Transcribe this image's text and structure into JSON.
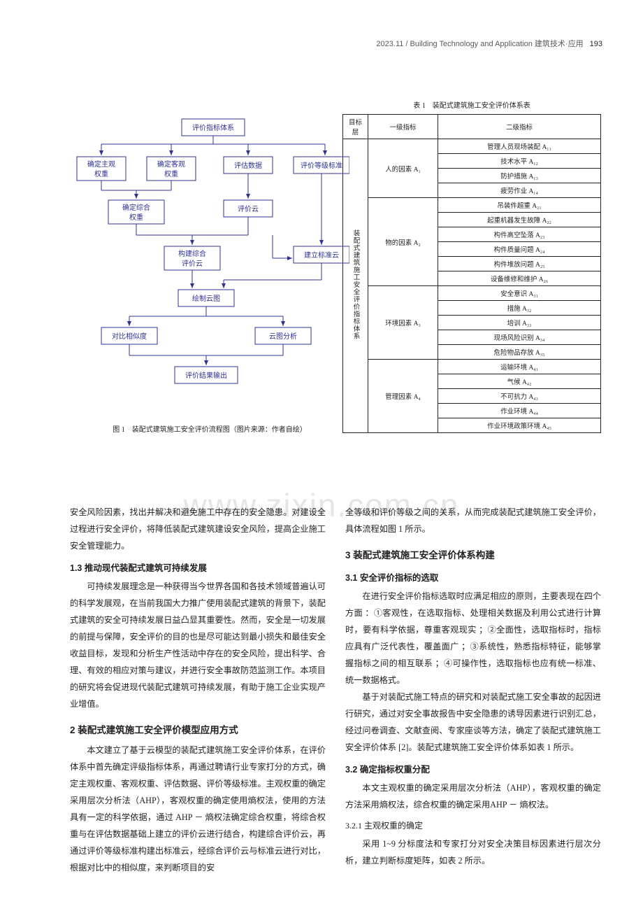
{
  "header": {
    "journal": "2023.11 / Building Technology and Application 建筑技术·应用",
    "page": "193"
  },
  "figure": {
    "caption": "图 1　装配式建筑施工安全评价流程图（图片来源：作者自绘）",
    "nodes": {
      "n1": "评价指标体系",
      "n2": "确定主观权重",
      "n3": "确定客观权重",
      "n4": "评估数据",
      "n5": "评价等级标准",
      "n6": "确定综合权重",
      "n7": "评价云",
      "n8": "构建综合评价云",
      "n9": "建立标准云",
      "n10": "绘制云图",
      "n11": "对比相似度",
      "n12": "云图分析",
      "n13": "评价结果输出"
    },
    "style": {
      "node_fill": "#ffffff",
      "node_stroke": "#2e3092",
      "node_stroke_width": 1,
      "arrow_stroke": "#2e3092",
      "font_size": 10,
      "text_color": "#2e3092"
    }
  },
  "table": {
    "caption": "表 1　装配式建筑施工安全评价体系表",
    "headers": [
      "目标层",
      "一级指标",
      "二级指标"
    ],
    "target": "装配式建筑施工安全评价指标体系",
    "groups": [
      {
        "label": "人的因素 A₁",
        "items": [
          "管理人员现场装配 A₁₁",
          "技术水平 A₁₂",
          "防护措施 A₁₃",
          "疲劳作业 A₁₄"
        ]
      },
      {
        "label": "物的因素 A₂",
        "items": [
          "吊装件超重 A₂₁",
          "起重机器发生故障 A₂₂",
          "构件高空坠落 A₂₃",
          "构件质量问题 A₂₄",
          "构件堆放问题 A₂₅",
          "设备维修和维护 A₂₆"
        ]
      },
      {
        "label": "环境因素 A₃",
        "items": [
          "安全意识 A₃₁",
          "措施 A₃₂",
          "培训 A₃₃",
          "现场风险识别 A₃₄",
          "危险物品存放 A₃₅"
        ]
      },
      {
        "label": "管理因素 A₄",
        "items": [
          "运输环境 A₄₁",
          "气候 A₄₂",
          "不可抗力 A₄₃",
          "作业环境 A₄₄",
          "作业环境政策环境 A₄₅"
        ]
      }
    ]
  },
  "watermark": "www.zixin.com.cn",
  "body": {
    "left": {
      "p1": "安全风险因素，找出并解决和避免施工中存在的安全隐患。对建设全过程进行安全评价，将降低装配式建筑建设安全风险，提高企业施工安全管理能力。",
      "h13": "1.3 推动现代装配式建筑可持续发展",
      "p2": "可持续发展理念是一种获得当今世界各国和各技术领域普遍认可的科学发展观，在当前我国大力推广使用装配式建筑的背景下，装配式建筑的安全可持续发展日益凸显其重要性。然而，安全是一切发展的前提与保障，安全评价的目的也是尽可能达到最小损失和最佳安全收益目标，发现和分析生产性活动中存在的安全风险，提出科学、合理、有效的相应对策与建议，并进行安全事故防范监测工作。本项目的研究将会促进现代装配式建筑可持续发展，有助于施工企业实现产业增值。",
      "h2": "2 装配式建筑施工安全评价模型应用方式",
      "p3": "本文建立了基于云模型的装配式建筑施工安全评价体系，在评价体系中首先确定评级指标体系，再通过聘请行业专家打分的方式，确定主观权重、客观权重、评估数据、评价等级标准。主观权重的确定采用层次分析法（AHP），客观权重的确定使用熵权法，使用的方法具有一定的科学依据，通过 AHP － 熵权法确定综合权重，将综合权重与在评估数据基础上建立的评价云进行结合，构建综合评价云，再通过评价等级标准构建出标准云，经综合评价云与标准云进行对比，根据对比中的相似度，来判断项目的安"
    },
    "right": {
      "p1": "全等级和评价等级之间的关系，从而完成装配式建筑施工安全评价，具体流程如图 1 所示。",
      "h3": "3 装配式建筑施工安全评价体系构建",
      "h31": "3.1 安全评价指标的选取",
      "p2": "在进行安全评价指标选取时应满足相应的原则，主要表现在四个方面 ：①客观性，在选取指标、处理相关数据及利用公式进行计算时，要有科学依据，尊重客观现实 ；②全面性，选取指标时，指标应具有广泛代表性，覆盖面广 ；③系统性，熟悉指标特征，能够掌握指标之间的相互联系 ；④可操作性，选取指标也应有统一标准、统一数据格式。",
      "p3": "基于对装配式施工特点的研究和对装配式施工安全事故的起因进行研究，通过对安全事故报告中安全隐患的诱导因素进行识别汇总，经过问卷调查、文献查阅、专家座谈等方法，确定了装配式建筑施工安全评价体系 [2]。装配式建筑施工安全评价体系如表 1 所示。",
      "h32": "3.2 确定指标权重分配",
      "p4": "本文主观权重的确定采用层次分析法（AHP），客观权重的确定方法采用熵权法，综合权重的确定采用AHP － 熵权法。",
      "h321": "3.2.1 主观权重的确定",
      "p5": "采用 1~9 分标度法和专家打分对安全决策目标因素进行层次分析，建立判断标度矩阵，如表 2 所示。"
    }
  }
}
